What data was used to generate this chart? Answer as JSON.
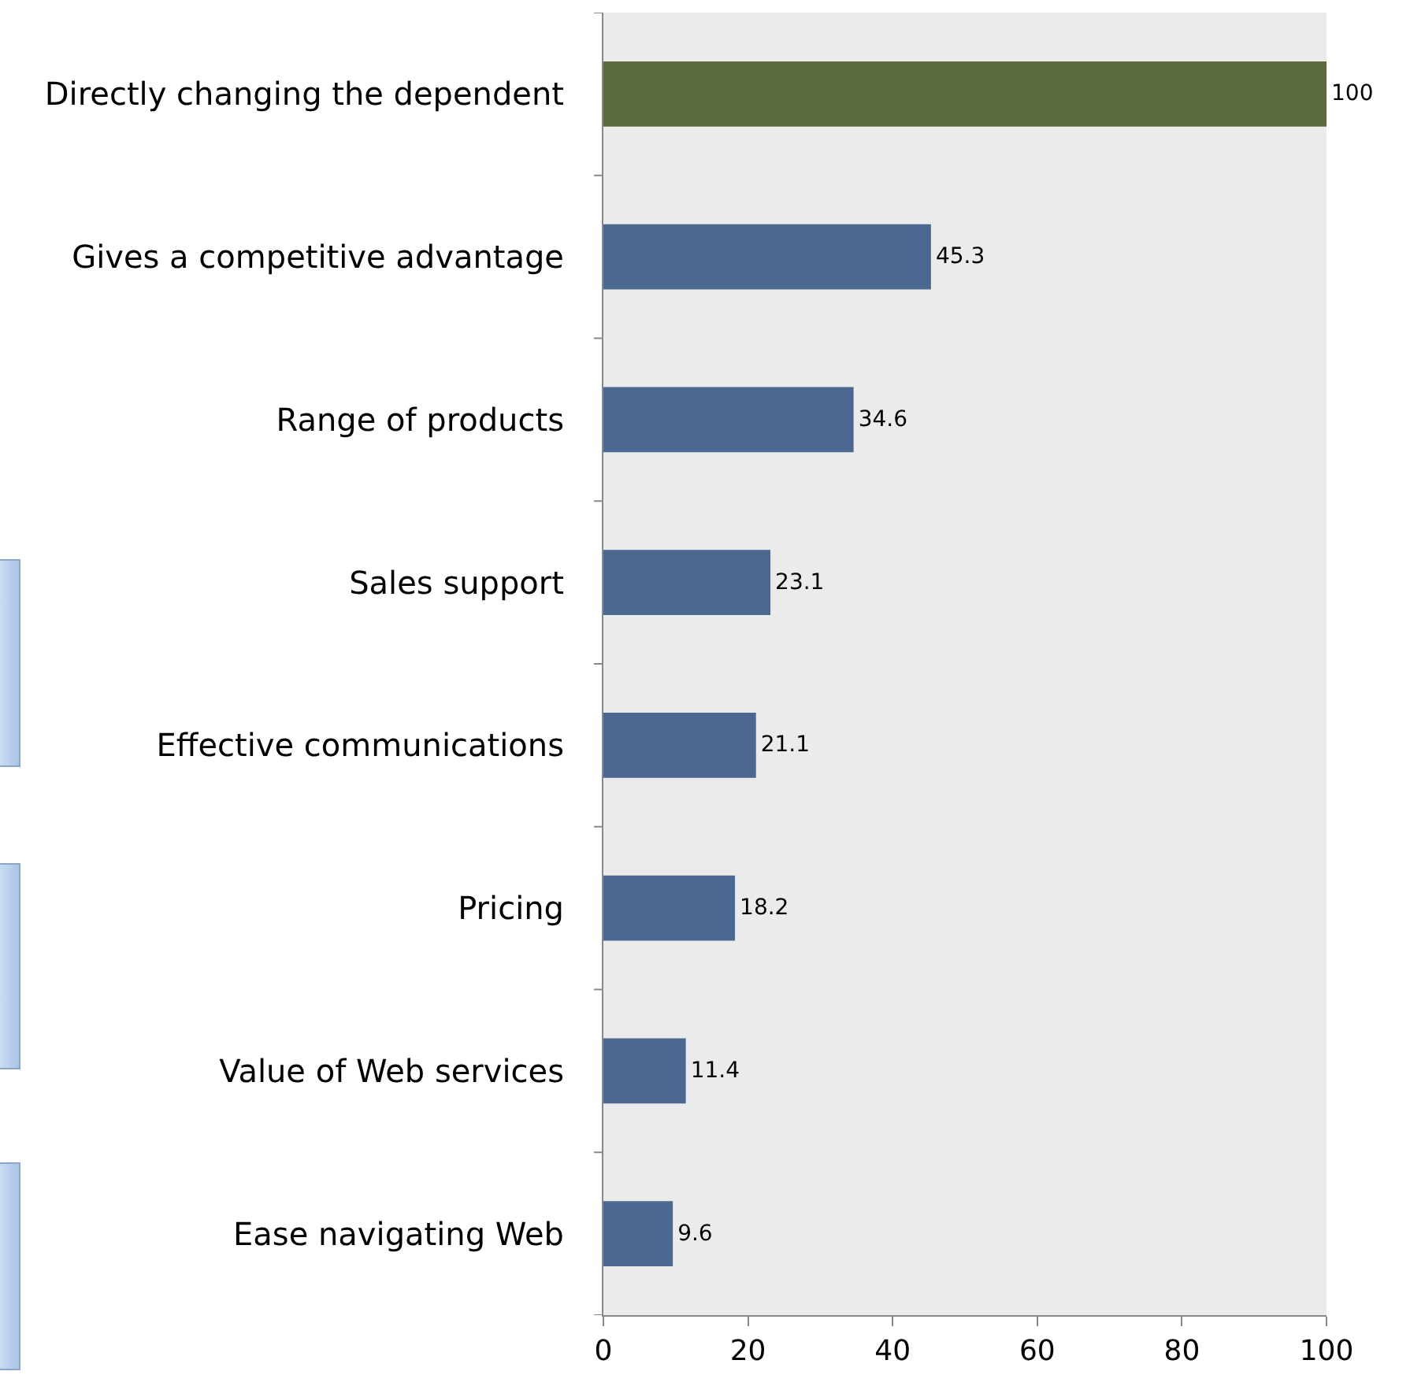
{
  "chart_data": {
    "type": "bar",
    "orientation": "horizontal",
    "categories": [
      "Directly changing the dependent",
      "Gives a competitive advantage",
      "Range of products",
      "Sales support",
      "Effective communications",
      "Pricing",
      "Value of Web services",
      "Ease navigating Web"
    ],
    "values": [
      100,
      45.3,
      34.6,
      23.1,
      21.1,
      18.2,
      11.4,
      9.6
    ],
    "colors": [
      "#5b6b3c",
      "#4a6890",
      "#4a6890",
      "#4a6890",
      "#4a6890",
      "#4a6890",
      "#4a6890",
      "#4a6890"
    ],
    "xlim": [
      0,
      100
    ],
    "xticks": [
      0,
      20,
      40,
      60,
      80,
      100
    ],
    "grid": false,
    "legend": false,
    "data_labels": true
  }
}
